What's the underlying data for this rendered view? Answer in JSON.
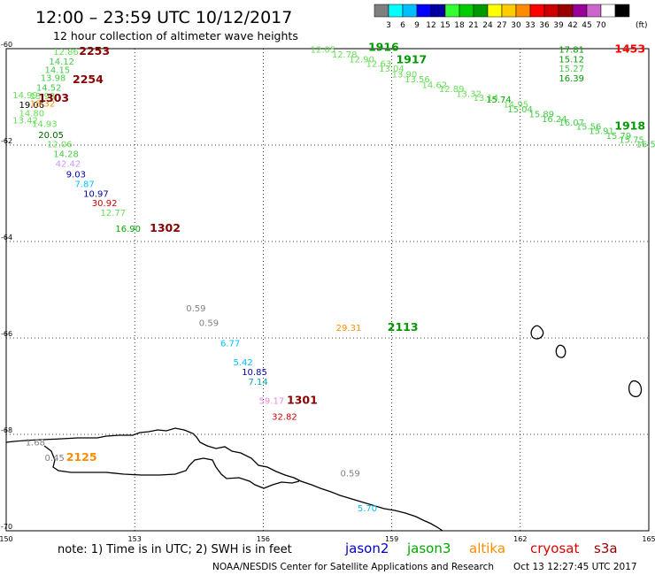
{
  "header": {
    "title": "12:00 – 23:59 UTC 10/12/2017",
    "subtitle": "12 hour collection of altimeter wave heights"
  },
  "colorbar": {
    "bins": [
      {
        "color": "#7f7f7f"
      },
      {
        "color": "#00ffff"
      },
      {
        "color": "#00bfff"
      },
      {
        "color": "#0000ff"
      },
      {
        "color": "#0000a0"
      },
      {
        "color": "#33ff33"
      },
      {
        "color": "#00cc00"
      },
      {
        "color": "#009900"
      },
      {
        "color": "#ffff00"
      },
      {
        "color": "#ffcc00"
      },
      {
        "color": "#ff8c00"
      },
      {
        "color": "#ff0000"
      },
      {
        "color": "#cc0000"
      },
      {
        "color": "#990000"
      },
      {
        "color": "#990099"
      },
      {
        "color": "#cc66cc"
      },
      {
        "color": "#ffffff"
      },
      {
        "color": "#000000"
      }
    ],
    "labels": [
      "3",
      "6",
      "9",
      "12",
      "15",
      "18",
      "21",
      "24",
      "27",
      "30",
      "33",
      "36",
      "39",
      "42",
      "45",
      "70"
    ],
    "unit": "(ft)"
  },
  "axes": {
    "lon_ticks": [
      150,
      153,
      156,
      159,
      162,
      165
    ],
    "lat_ticks": [
      -60,
      -62,
      -64,
      -66,
      -68,
      -70
    ],
    "lon_labels": [
      "150",
      "153",
      "156",
      "159",
      "162",
      "165"
    ],
    "lat_labels": [
      "-60",
      "-62",
      "-64",
      "-66",
      "-68",
      "-70"
    ],
    "lon_range": [
      150,
      165
    ],
    "lat_range": [
      -60,
      -70
    ],
    "grid": true
  },
  "observations": [
    {
      "text": "12.86",
      "color": "#66dd55",
      "lon": 151.1,
      "lat": -60.13
    },
    {
      "text": "14.12",
      "color": "#44cc44",
      "lon": 151.0,
      "lat": -60.33
    },
    {
      "text": "14.15",
      "color": "#44cc44",
      "lon": 150.9,
      "lat": -60.5
    },
    {
      "text": "13.98",
      "color": "#44cc44",
      "lon": 150.8,
      "lat": -60.67
    },
    {
      "text": "14.52",
      "color": "#44cc44",
      "lon": 150.7,
      "lat": -60.87
    },
    {
      "text": "14.99",
      "color": "#66dd55",
      "lon": 150.15,
      "lat": -61.03
    },
    {
      "text": "13.93",
      "color": "#66dd55",
      "lon": 150.55,
      "lat": -61.05
    },
    {
      "text": "19.06",
      "color": "#000000",
      "lon": 150.3,
      "lat": -61.23
    },
    {
      "text": "18.32",
      "color": "#ff8c00",
      "lon": 150.55,
      "lat": -61.2
    },
    {
      "text": "14.80",
      "color": "#66dd55",
      "lon": 150.3,
      "lat": -61.4
    },
    {
      "text": "13.42",
      "color": "#66dd55",
      "lon": 150.15,
      "lat": -61.55
    },
    {
      "text": "14.93",
      "color": "#66dd55",
      "lon": 150.6,
      "lat": -61.62
    },
    {
      "text": "20.05",
      "color": "#006600",
      "lon": 150.75,
      "lat": -61.85
    },
    {
      "text": "12.06",
      "color": "#66dd55",
      "lon": 150.95,
      "lat": -62.05
    },
    {
      "text": "14.28",
      "color": "#44cc44",
      "lon": 151.1,
      "lat": -62.25
    },
    {
      "text": "42.42",
      "color": "#cc99ff",
      "lon": 151.15,
      "lat": -62.45
    },
    {
      "text": "9.03",
      "color": "#0000a0",
      "lon": 151.4,
      "lat": -62.67
    },
    {
      "text": "7.87",
      "color": "#00bfff",
      "lon": 151.6,
      "lat": -62.87
    },
    {
      "text": "10.97",
      "color": "#0000a0",
      "lon": 151.8,
      "lat": -63.07
    },
    {
      "text": "30.92",
      "color": "#cc0000",
      "lon": 152.0,
      "lat": -63.27
    },
    {
      "text": "12.77",
      "color": "#66dd55",
      "lon": 152.2,
      "lat": -63.47
    },
    {
      "text": "16.90",
      "color": "#00aa00",
      "lon": 152.55,
      "lat": -63.8
    },
    {
      "text": "0.59",
      "color": "#7f7f7f",
      "lon": 154.2,
      "lat": -65.45
    },
    {
      "text": "0.59",
      "color": "#7f7f7f",
      "lon": 154.5,
      "lat": -65.75
    },
    {
      "text": "6.77",
      "color": "#00bfff",
      "lon": 155.0,
      "lat": -66.17
    },
    {
      "text": "5.42",
      "color": "#00bfff",
      "lon": 155.3,
      "lat": -66.57
    },
    {
      "text": "10.85",
      "color": "#0000a0",
      "lon": 155.5,
      "lat": -66.77
    },
    {
      "text": "7.14",
      "color": "#00aaaa",
      "lon": 155.65,
      "lat": -66.97
    },
    {
      "text": "59.17",
      "color": "#ee88dd",
      "lon": 155.9,
      "lat": -67.37
    },
    {
      "text": "32.82",
      "color": "#cc0000",
      "lon": 156.2,
      "lat": -67.7
    },
    {
      "text": "1.68",
      "color": "#7f7f7f",
      "lon": 150.45,
      "lat": -68.23
    },
    {
      "text": "0.45",
      "color": "#7f7f7f",
      "lon": 150.9,
      "lat": -68.55
    },
    {
      "text": "0.59",
      "color": "#7f7f7f",
      "lon": 157.8,
      "lat": -68.87
    },
    {
      "text": "5.70",
      "color": "#00bfff",
      "lon": 158.2,
      "lat": -69.6
    },
    {
      "text": "29.31",
      "color": "#ff8c00",
      "lon": 157.7,
      "lat": -65.85
    },
    {
      "text": "12.05",
      "color": "#66dd55",
      "lon": 157.1,
      "lat": -60.08
    },
    {
      "text": "12.78",
      "color": "#66dd55",
      "lon": 157.6,
      "lat": -60.18
    },
    {
      "text": "12.90",
      "color": "#66dd55",
      "lon": 158.0,
      "lat": -60.28
    },
    {
      "text": "12.63",
      "color": "#66dd55",
      "lon": 158.4,
      "lat": -60.38
    },
    {
      "text": "13.04",
      "color": "#66dd55",
      "lon": 158.7,
      "lat": -60.48
    },
    {
      "text": "13.90",
      "color": "#66dd55",
      "lon": 159.0,
      "lat": -60.6
    },
    {
      "text": "13.56",
      "color": "#66dd55",
      "lon": 159.3,
      "lat": -60.7
    },
    {
      "text": "14.62",
      "color": "#66dd55",
      "lon": 159.7,
      "lat": -60.82
    },
    {
      "text": "12.89",
      "color": "#66dd55",
      "lon": 160.1,
      "lat": -60.9
    },
    {
      "text": "13.32",
      "color": "#66dd55",
      "lon": 160.5,
      "lat": -61.0
    },
    {
      "text": "13.14",
      "color": "#66dd55",
      "lon": 160.9,
      "lat": -61.08
    },
    {
      "text": "15.74",
      "color": "#00aa00",
      "lon": 161.2,
      "lat": -61.12
    },
    {
      "text": "14.95",
      "color": "#66dd55",
      "lon": 161.6,
      "lat": -61.22
    },
    {
      "text": "15.04",
      "color": "#44cc44",
      "lon": 161.7,
      "lat": -61.32
    },
    {
      "text": "15.89",
      "color": "#44cc44",
      "lon": 162.2,
      "lat": -61.42
    },
    {
      "text": "16.24",
      "color": "#44cc44",
      "lon": 162.5,
      "lat": -61.52
    },
    {
      "text": "16.07",
      "color": "#44cc44",
      "lon": 162.9,
      "lat": -61.6
    },
    {
      "text": "15.56",
      "color": "#44cc44",
      "lon": 163.3,
      "lat": -61.68
    },
    {
      "text": "15.91",
      "color": "#44cc44",
      "lon": 163.6,
      "lat": -61.77
    },
    {
      "text": "15.79",
      "color": "#44cc44",
      "lon": 164.0,
      "lat": -61.87
    },
    {
      "text": "15.75",
      "color": "#44cc44",
      "lon": 164.3,
      "lat": -61.95
    },
    {
      "text": "16.5",
      "color": "#44cc44",
      "lon": 164.7,
      "lat": -62.05
    },
    {
      "text": "17.81",
      "color": "#009900",
      "lon": 162.9,
      "lat": -60.08
    },
    {
      "text": "15.12",
      "color": "#009900",
      "lon": 162.9,
      "lat": -60.28
    },
    {
      "text": "15.27",
      "color": "#44cc44",
      "lon": 162.9,
      "lat": -60.48
    },
    {
      "text": "16.39",
      "color": "#009900",
      "lon": 162.9,
      "lat": -60.68
    }
  ],
  "pass_times": [
    {
      "text": "2253",
      "color": "#880000",
      "lon": 151.7,
      "lat": -60.13
    },
    {
      "text": "2254",
      "color": "#880000",
      "lon": 151.55,
      "lat": -60.72
    },
    {
      "text": "1303",
      "color": "#880000",
      "lon": 150.75,
      "lat": -61.1
    },
    {
      "text": "1302",
      "color": "#880000",
      "lon": 153.35,
      "lat": -63.8
    },
    {
      "text": "1301",
      "color": "#880000",
      "lon": 156.55,
      "lat": -67.37
    },
    {
      "text": "2125",
      "color": "#ff8c00",
      "lon": 151.4,
      "lat": -68.55
    },
    {
      "text": "2113",
      "color": "#009900",
      "lon": 158.9,
      "lat": -65.85
    },
    {
      "text": "1916",
      "color": "#009900",
      "lon": 158.45,
      "lat": -60.05
    },
    {
      "text": "1917",
      "color": "#009900",
      "lon": 159.1,
      "lat": -60.3
    },
    {
      "text": "1453",
      "color": "#ff0000",
      "lon": 164.2,
      "lat": -60.08
    },
    {
      "text": "1918",
      "color": "#009900",
      "lon": 164.2,
      "lat": -61.68
    }
  ],
  "footer": {
    "note": "note:  1) Time is in UTC; 2) SWH is in feet",
    "legend": [
      {
        "name": "jason2",
        "color": "#0000cc"
      },
      {
        "name": "jason3",
        "color": "#00aa00"
      },
      {
        "name": "altika",
        "color": "#ff8c00"
      },
      {
        "name": "cryosat",
        "color": "#dd0000"
      },
      {
        "name": "s3a",
        "color": "#990000"
      }
    ],
    "credit": "NOAA/NESDIS Center for Satellite Applications and Research",
    "timestamp": "Oct 13 12:27:45 UTC 2017"
  }
}
